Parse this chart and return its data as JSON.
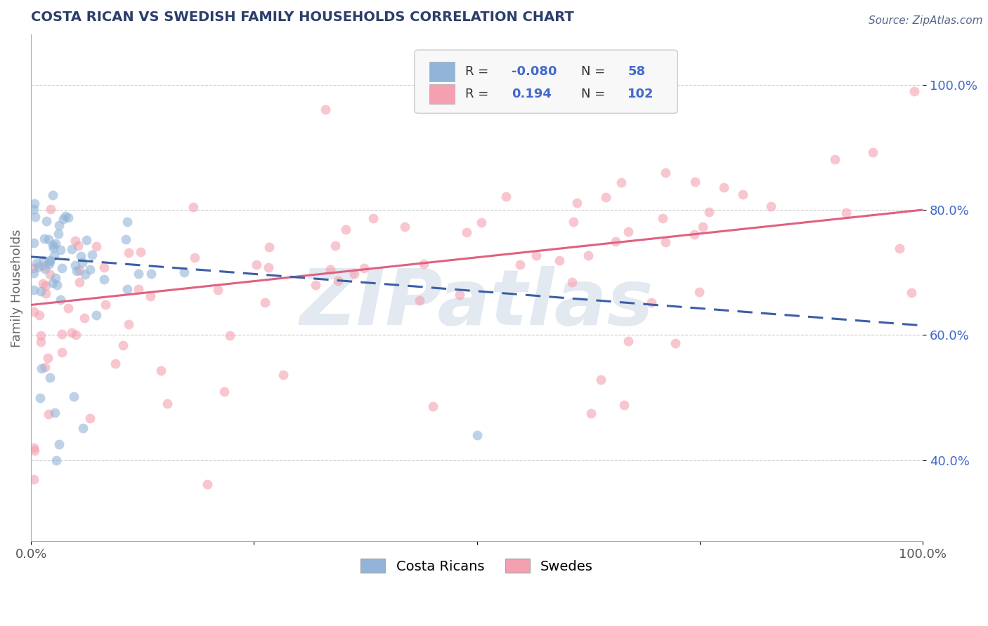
{
  "title": "COSTA RICAN VS SWEDISH FAMILY HOUSEHOLDS CORRELATION CHART",
  "source_text": "Source: ZipAtlas.com",
  "ylabel": "Family Households",
  "ytick_labels": [
    "40.0%",
    "60.0%",
    "80.0%",
    "100.0%"
  ],
  "ytick_values": [
    0.4,
    0.6,
    0.8,
    1.0
  ],
  "xmin": 0.0,
  "xmax": 1.0,
  "ymin": 0.27,
  "ymax": 1.08,
  "legend_r_blue": "-0.080",
  "legend_n_blue": "58",
  "legend_r_pink": "0.194",
  "legend_n_pink": "102",
  "blue_color": "#92B4D8",
  "pink_color": "#F4A0B0",
  "blue_line_color": "#3B5EA6",
  "pink_line_color": "#E06080",
  "ytick_color": "#4169CC",
  "watermark_text": "ZIPatlas",
  "watermark_color": "#A0B8D0",
  "background_color": "#FFFFFF",
  "grid_color": "#CCCCCC",
  "title_color": "#2C3E6B",
  "blue_trend_y0": 0.725,
  "blue_trend_y1": 0.615,
  "pink_trend_y0": 0.648,
  "pink_trend_y1": 0.8
}
